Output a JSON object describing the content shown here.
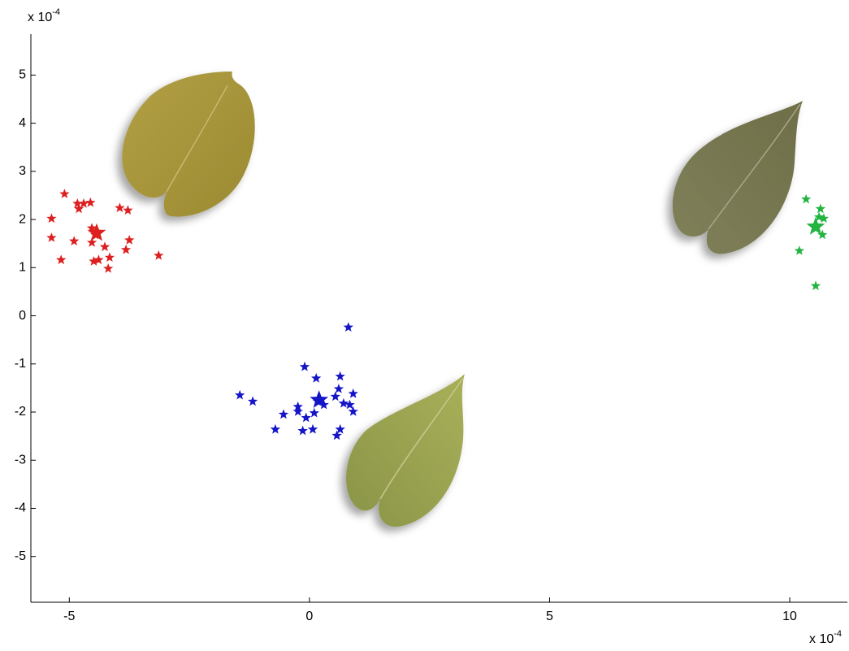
{
  "chart_data": {
    "type": "scatter",
    "x_multiplier": {
      "base": "x 10",
      "exponent": "-4"
    },
    "y_multiplier": {
      "base": "x 10",
      "exponent": "-4"
    },
    "xlim": [
      -5.8,
      11.2
    ],
    "xticks": [
      -5,
      0,
      5,
      10
    ],
    "ylim": [
      -5.95,
      5.85
    ],
    "yticks": [
      -5,
      -4,
      -3,
      -2,
      -1,
      0,
      1,
      2,
      3,
      4,
      5
    ],
    "series": [
      {
        "color": "#dd1f1f",
        "x": [
          -5.37,
          -5.1,
          -5.37,
          -5.17,
          -4.9,
          -4.83,
          -4.8,
          -4.7,
          -4.56,
          -4.53,
          -4.46,
          -4.53,
          -4.49,
          -4.39,
          -4.26,
          -4.16,
          -4.19,
          -3.95,
          -3.78,
          -3.75,
          -3.82,
          -3.14
        ],
        "values": [
          2.02,
          2.53,
          1.62,
          1.16,
          1.55,
          2.33,
          2.22,
          2.33,
          2.35,
          1.82,
          1.68,
          1.52,
          1.13,
          1.16,
          1.43,
          1.21,
          0.98,
          2.24,
          2.19,
          1.57,
          1.37,
          1.25
        ],
        "center": {
          "x": -4.43,
          "y": 1.72
        }
      },
      {
        "color": "#1515c8",
        "x": [
          0.81,
          -0.1,
          0.14,
          0.64,
          -1.45,
          -1.18,
          -0.54,
          -0.71,
          -0.24,
          -0.14,
          0.07,
          -0.07,
          0.1,
          0.17,
          0.3,
          0.54,
          0.61,
          0.71,
          0.84,
          0.91,
          0.91,
          0.64,
          0.57,
          -0.24
        ],
        "values": [
          -0.24,
          -1.06,
          -1.3,
          -1.26,
          -1.65,
          -1.78,
          -2.05,
          -2.36,
          -1.99,
          -2.39,
          -2.36,
          -2.12,
          -2.02,
          -1.78,
          -1.85,
          -1.68,
          -1.52,
          -1.82,
          -1.85,
          -1.62,
          -1.99,
          -2.36,
          -2.49,
          -1.89
        ],
        "center": {
          "x": 0.2,
          "y": -1.75
        }
      },
      {
        "color": "#22b440",
        "x": [
          10.34,
          10.64,
          10.61,
          10.71,
          10.54,
          10.68,
          10.2,
          10.54
        ],
        "values": [
          2.42,
          2.22,
          2.05,
          2.02,
          1.82,
          1.68,
          1.35,
          0.62
        ],
        "center": {
          "x": 10.54,
          "y": 1.85
        }
      }
    ]
  }
}
